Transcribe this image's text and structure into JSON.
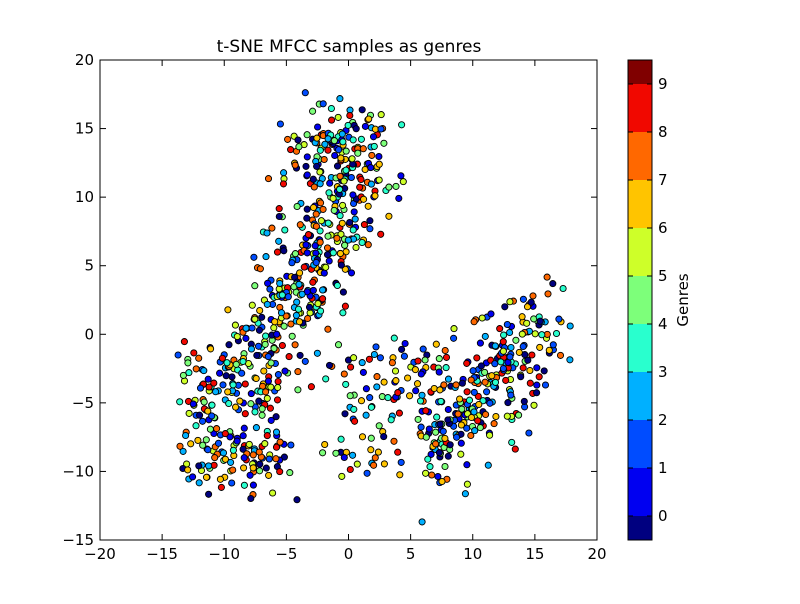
{
  "chart_data": {
    "type": "scatter",
    "title": "t-SNE MFCC samples as genres",
    "xlabel": "",
    "ylabel": "",
    "xlim": [
      -20,
      20
    ],
    "ylim": [
      -15,
      20
    ],
    "xticks": [
      "−20",
      "−15",
      "−10",
      "−5",
      "0",
      "5",
      "10",
      "15",
      "20"
    ],
    "yticks": [
      "−15",
      "−10",
      "−5",
      "0",
      "5",
      "10",
      "15",
      "20"
    ],
    "grid": false,
    "marker": "circle",
    "point_count": 1000,
    "colorbar": {
      "label": "Genres",
      "colormap": "jet",
      "range": [
        -0.5,
        9.5
      ],
      "ticks": [
        "0",
        "1",
        "2",
        "3",
        "4",
        "5",
        "6",
        "7",
        "8",
        "9"
      ],
      "colors": [
        "#000080",
        "#0000f1",
        "#004cff",
        "#00b0ff",
        "#29ffce",
        "#7dff7a",
        "#ceff29",
        "#ffc400",
        "#ff6800",
        "#f10800",
        "#800000"
      ]
    },
    "clusters": [
      {
        "region": "upper-left arc",
        "x_range": [
          -8,
          2.5
        ],
        "y_range": [
          -3,
          18
        ],
        "point_count": 430
      },
      {
        "region": "lower-left blob",
        "x_range": [
          -13.5,
          -4
        ],
        "y_range": [
          -12.5,
          -1
        ],
        "point_count": 210
      },
      {
        "region": "bottom-center",
        "x_range": [
          -2,
          8
        ],
        "y_range": [
          -12.5,
          1
        ],
        "point_count": 120
      },
      {
        "region": "right cluster",
        "x_range": [
          6,
          17
        ],
        "y_range": [
          -11.5,
          3
        ],
        "point_count": 240
      }
    ]
  }
}
